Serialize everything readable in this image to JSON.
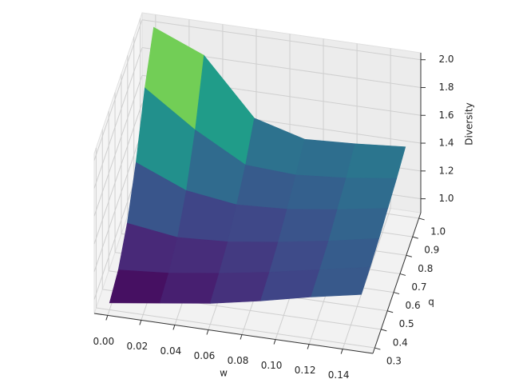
{
  "chart_data": {
    "type": "surface",
    "xlabel": "w",
    "ylabel": "q",
    "zlabel": "Diversity",
    "x": [
      0,
      0.03,
      0.06,
      0.09,
      0.12,
      0.15
    ],
    "y": [
      0.3,
      0.44,
      0.58,
      0.72,
      0.86,
      1.0
    ],
    "z": [
      [
        0.95,
        1.0,
        1.05,
        1.12,
        1.2,
        1.27
      ],
      [
        1.0,
        1.03,
        1.08,
        1.14,
        1.21,
        1.28
      ],
      [
        1.15,
        1.1,
        1.12,
        1.17,
        1.23,
        1.3
      ],
      [
        1.4,
        1.25,
        1.2,
        1.22,
        1.27,
        1.33
      ],
      [
        1.75,
        1.5,
        1.3,
        1.28,
        1.31,
        1.36
      ],
      [
        2.0,
        1.85,
        1.45,
        1.35,
        1.37,
        1.4
      ]
    ],
    "colormap": "viridis",
    "xlim": [
      -0.008,
      0.158
    ],
    "ylim": [
      0.27,
      1.03
    ],
    "zlim": [
      0.9,
      2.05
    ],
    "xticks": [
      {
        "value": 0,
        "label": "0.00"
      },
      0.02,
      0.04,
      0.06,
      0.08,
      {
        "value": 0.1,
        "label": "0.10"
      },
      0.12,
      0.14
    ],
    "yticks": [
      0.3,
      0.4,
      0.5,
      0.6,
      0.7,
      0.8,
      0.9,
      {
        "value": 1,
        "label": "1.0"
      }
    ],
    "zticks": [
      {
        "value": 1,
        "label": "1.0"
      },
      1.2,
      1.4,
      1.6,
      1.8,
      {
        "value": 2,
        "label": "2.0"
      }
    ],
    "grid": true
  }
}
